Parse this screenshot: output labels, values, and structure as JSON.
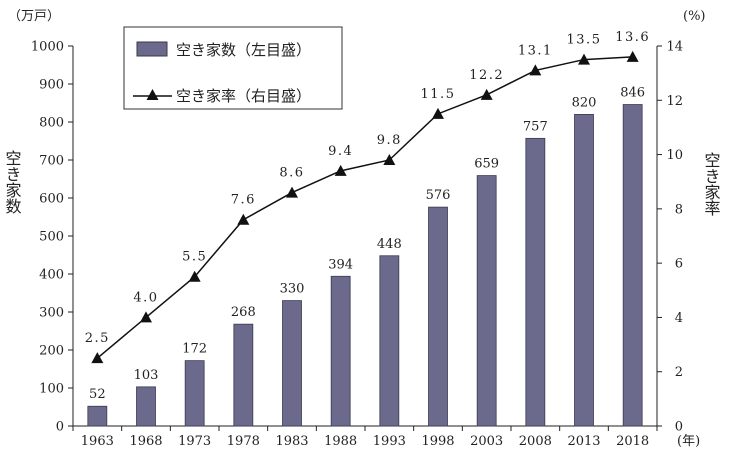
{
  "chart_data": {
    "type": "bar",
    "title": "",
    "xlabel": "",
    "x_unit": "(年)",
    "categories": [
      "1963",
      "1968",
      "1973",
      "1978",
      "1983",
      "1988",
      "1993",
      "1998",
      "2003",
      "2008",
      "2013",
      "2018"
    ],
    "series": [
      {
        "name": "空き家数（左目盛）",
        "type": "bar",
        "axis": "left",
        "values": [
          52,
          103,
          172,
          268,
          330,
          394,
          448,
          576,
          659,
          757,
          820,
          846
        ],
        "labels": [
          "52",
          "103",
          "172",
          "268",
          "330",
          "394",
          "448",
          "576",
          "659",
          "757",
          "820",
          "846"
        ]
      },
      {
        "name": "空き家率（右目盛）",
        "type": "line",
        "axis": "right",
        "marker": "triangle",
        "values": [
          2.5,
          4.0,
          5.5,
          7.6,
          8.6,
          9.4,
          9.8,
          11.5,
          12.2,
          13.1,
          13.5,
          13.6
        ],
        "labels": [
          "2.5",
          "4.0",
          "5.5",
          "7.6",
          "8.6",
          "9.4",
          "9.8",
          "11.5",
          "12.2",
          "13.1",
          "13.5",
          "13.6"
        ]
      }
    ],
    "y_left": {
      "label": "空き家数",
      "unit": "（万戸）",
      "ylim": [
        0,
        1000
      ],
      "ticks": [
        "0",
        "100",
        "200",
        "300",
        "400",
        "500",
        "600",
        "700",
        "800",
        "900",
        "1000"
      ]
    },
    "y_right": {
      "label": "空き家率",
      "unit": "(%)",
      "ylim": [
        0,
        14
      ],
      "ticks": [
        "0",
        "2",
        "4",
        "6",
        "8",
        "10",
        "12",
        "14"
      ]
    },
    "legend_position": "top-left",
    "grid": false,
    "colors": {
      "bar": "#6b6a8c",
      "bar_edge": "#3a3a52",
      "line": "#111111",
      "axis": "#222222"
    }
  }
}
